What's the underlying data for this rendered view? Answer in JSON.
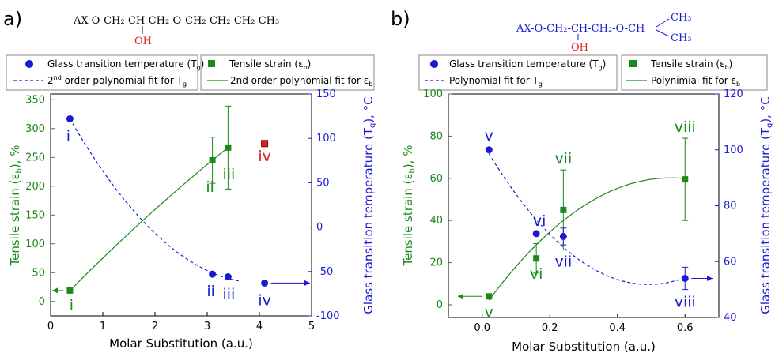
{
  "colors": {
    "green": "#1a8a1a",
    "blue": "#1a1ad6",
    "red": "#e02020",
    "black": "#000000"
  },
  "chart_data": [
    {
      "panel_label": "a)",
      "type": "scatter",
      "structure": {
        "text": "AX-O-CH₂-CH-CH₂-O-CH₂-CH₂-CH₂-CH₃",
        "substituent": "OH"
      },
      "legend": {
        "tg_points": "Glass transition temperature (T",
        "tg_sub": "g",
        "eb_points": "Tensile strain (ε",
        "eb_sub": "b",
        "tg_fit_pre": "2",
        "tg_fit_sup": "nd",
        "tg_fit_post": " order polynomial fit for T",
        "tg_fit_sub": "g",
        "eb_fit_pre": "2nd order polynomial fit for ε",
        "eb_fit_sub": "b"
      },
      "xlabel": "Molar Substitution (a.u.)",
      "ylabel_left": "Tensile strain (ε",
      "ylabel_left_sub": "b",
      "ylabel_left_post": "), %",
      "ylabel_right": "Glass transition temperature (T",
      "ylabel_right_sub": "g",
      "ylabel_right_post": "), °C",
      "xlim": [
        0,
        5
      ],
      "ylim_left": [
        -25,
        360
      ],
      "ylim_right": [
        -100,
        150
      ],
      "xticks": [
        "0",
        "1",
        "2",
        "3",
        "4",
        "5"
      ],
      "yticks_left": [
        "0",
        "50",
        "100",
        "150",
        "200",
        "250",
        "300",
        "350"
      ],
      "yticks_right": [
        "-100",
        "-50",
        "0",
        "50",
        "100",
        "150"
      ],
      "strain_points": [
        {
          "x": 0.37,
          "y": 19,
          "err": 0,
          "label": "i"
        },
        {
          "x": 3.1,
          "y": 245,
          "err": 40,
          "label": "ii"
        },
        {
          "x": 3.4,
          "y": 267,
          "err": 72,
          "label": "iii"
        }
      ],
      "strain_outlier": {
        "x": 4.1,
        "y": 274,
        "label": "iv"
      },
      "tg_points": [
        {
          "x": 0.37,
          "y": 122,
          "label": "i"
        },
        {
          "x": 3.1,
          "y": -53,
          "label": "ii"
        },
        {
          "x": 3.4,
          "y": -56,
          "label": "iii"
        },
        {
          "x": 4.1,
          "y": -63,
          "label": "iv"
        }
      ]
    },
    {
      "panel_label": "b)",
      "type": "scatter",
      "structure": {
        "text": "AX-O-CH₂-CH-CH₂-O-CH",
        "substituent": "OH",
        "branch_top": "CH₃",
        "branch_bottom": "CH₃"
      },
      "legend": {
        "tg_points": "Glass transition temperature (T",
        "tg_sub": "g",
        "eb_points": "Tensile strain (ε",
        "eb_sub": "b",
        "tg_fit": "Polynomial fit for T",
        "tg_fit_sub": "g",
        "eb_fit": "Polynimial fit for ε",
        "eb_fit_sub": "b"
      },
      "xlabel": "Molar Substitution (a.u.)",
      "ylabel_left": "Tensile strain (ε",
      "ylabel_left_sub": "b",
      "ylabel_left_post": "), %",
      "ylabel_right": "Glass transition temperature (T",
      "ylabel_right_sub": "g",
      "ylabel_right_post": "), °C",
      "xlim": [
        -0.1,
        0.7
      ],
      "ylim_left": [
        -6,
        100
      ],
      "ylim_right": [
        40,
        120
      ],
      "xticks": [
        "0.0",
        "0.2",
        "0.4",
        "0.6"
      ],
      "yticks_left": [
        "0",
        "20",
        "40",
        "60",
        "80",
        "100"
      ],
      "yticks_right": [
        "40",
        "60",
        "80",
        "100",
        "120"
      ],
      "strain_points": [
        {
          "x": 0.02,
          "y": 4,
          "err": 0,
          "label": "v"
        },
        {
          "x": 0.16,
          "y": 22,
          "err": 7,
          "label": "vi"
        },
        {
          "x": 0.24,
          "y": 45,
          "err": 19,
          "label": "vii"
        },
        {
          "x": 0.6,
          "y": 59.5,
          "err": 19.5,
          "label": "viii"
        }
      ],
      "tg_points": [
        {
          "x": 0.02,
          "y": 100,
          "err": 0,
          "label": "v"
        },
        {
          "x": 0.16,
          "y": 70,
          "err": 0,
          "label": "vi"
        },
        {
          "x": 0.24,
          "y": 69,
          "err": 3,
          "label": "vii"
        },
        {
          "x": 0.6,
          "y": 54,
          "err": 4,
          "label": "viii"
        }
      ]
    }
  ]
}
